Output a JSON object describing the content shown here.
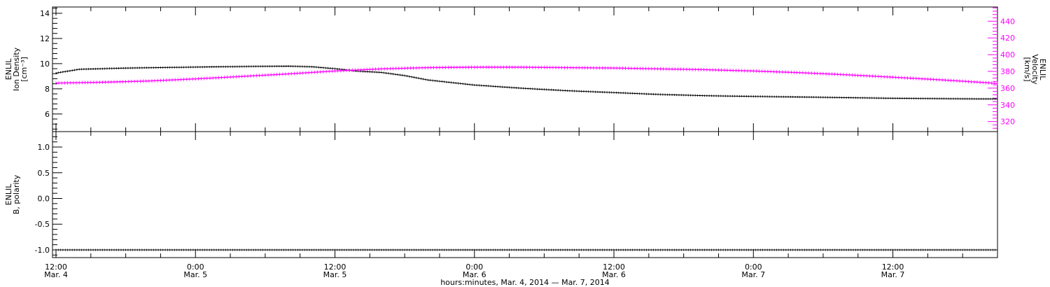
{
  "chart_data": [
    {
      "type": "line",
      "panel": "top",
      "left_axis": {
        "label_lines": [
          "ENLIL",
          "Ion Density",
          "[cm⁻³]"
        ],
        "ylim": [
          4.6,
          14.5
        ],
        "ticks": [
          6,
          8,
          10,
          12,
          14
        ],
        "tick_labels": [
          "6",
          "8",
          "10",
          "12",
          "14"
        ],
        "color": "#000000"
      },
      "right_axis": {
        "label_lines": [
          "ENLIL",
          "Velocity",
          "[km/s]"
        ],
        "ylim": [
          308,
          457
        ],
        "ticks": [
          320,
          340,
          360,
          380,
          400,
          420,
          440
        ],
        "tick_labels": [
          "320",
          "340",
          "360",
          "380",
          "400",
          "420",
          "440"
        ],
        "color": "#ff00ff"
      },
      "series": [
        {
          "axis": "left",
          "color": "#000000",
          "x": [
            0,
            2,
            6,
            10,
            14,
            17,
            20,
            22,
            24,
            26,
            28,
            30,
            32,
            36,
            40,
            44,
            48,
            52,
            56,
            60,
            64,
            68,
            72,
            76,
            80,
            81
          ],
          "y": [
            9.25,
            9.55,
            9.65,
            9.7,
            9.75,
            9.78,
            9.8,
            9.75,
            9.6,
            9.4,
            9.3,
            9.05,
            8.7,
            8.3,
            8.05,
            7.85,
            7.7,
            7.55,
            7.45,
            7.4,
            7.35,
            7.3,
            7.25,
            7.22,
            7.2,
            7.2
          ]
        },
        {
          "axis": "right",
          "color": "#ff00ff",
          "x": [
            0,
            4,
            8,
            12,
            16,
            20,
            24,
            28,
            32,
            36,
            40,
            44,
            48,
            52,
            56,
            60,
            64,
            68,
            72,
            76,
            80,
            81
          ],
          "y": [
            366,
            367,
            368.5,
            371,
            374,
            377,
            380.5,
            383,
            384.5,
            385,
            385,
            384.5,
            384,
            383,
            382,
            380.5,
            378.5,
            376,
            373,
            370,
            366.5,
            365.5
          ]
        }
      ]
    },
    {
      "type": "line",
      "panel": "bottom",
      "left_axis": {
        "label_lines": [
          "ENLIL",
          "B, polarity"
        ],
        "ylim": [
          -1.15,
          1.3
        ],
        "ticks": [
          -1.0,
          -0.5,
          0.0,
          0.5,
          1.0
        ],
        "tick_labels": [
          "-1.0",
          "-0.5",
          "0.0",
          "0.5",
          "1.0"
        ],
        "color": "#000000"
      },
      "series": [
        {
          "axis": "left",
          "color": "#000000",
          "x": [
            0,
            81
          ],
          "y": [
            -1.0,
            -1.0
          ]
        }
      ]
    }
  ],
  "x_axis": {
    "unit": "hours since 12:00 Mar. 4, 2014",
    "xlim": [
      -0.3,
      81
    ],
    "major_ticks": [
      0,
      12,
      24,
      36,
      48,
      60,
      72
    ],
    "tick_labels_time": [
      "12:00",
      "0:00",
      "12:00",
      "0:00",
      "12:00",
      "0:00",
      "12:00"
    ],
    "tick_labels_date": [
      "Mar. 4",
      "Mar. 5",
      "Mar. 5",
      "Mar. 6",
      "Mar. 6",
      "Mar. 7",
      "Mar. 7"
    ],
    "title": "hours:minutes, Mar.  4, 2014 — Mar.  7, 2014"
  }
}
